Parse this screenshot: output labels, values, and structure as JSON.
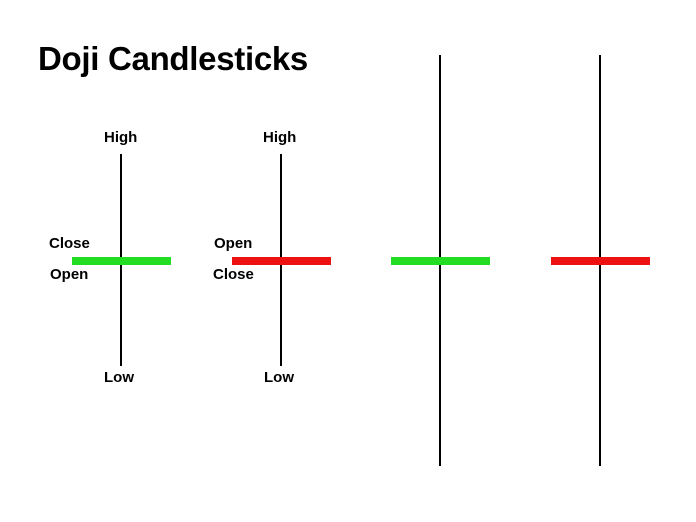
{
  "title": "Doji Candlesticks",
  "colors": {
    "bullish": "#22dd22",
    "bearish": "#ee1111",
    "wick": "#000000"
  },
  "candles": [
    {
      "kind": "bullish",
      "labels": {
        "high": "High",
        "low": "Low",
        "upper": "Close",
        "lower": "Open"
      }
    },
    {
      "kind": "bearish",
      "labels": {
        "high": "High",
        "low": "Low",
        "upper": "Open",
        "lower": "Close"
      }
    },
    {
      "kind": "bullish"
    },
    {
      "kind": "bearish"
    }
  ]
}
